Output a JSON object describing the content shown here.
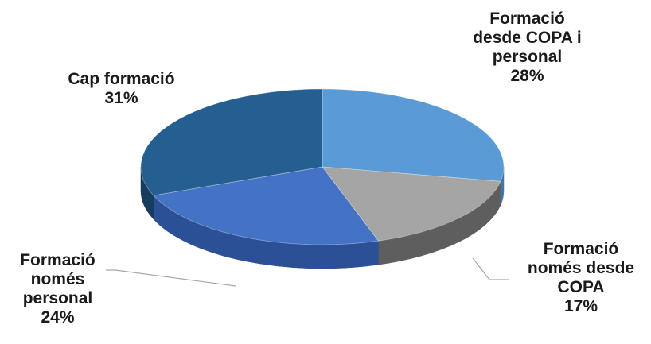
{
  "chart_data": {
    "type": "pie",
    "style": "3d",
    "title": "",
    "slices": [
      {
        "label_lines": [
          "Formació",
          "desde COPA i",
          "personal"
        ],
        "value": 28,
        "value_label": "28%",
        "color": "#5b9bd5",
        "side_color": "#3d76ad"
      },
      {
        "label_lines": [
          "Formació",
          "només desde",
          "COPA"
        ],
        "value": 17,
        "value_label": "17%",
        "color": "#a5a5a5",
        "side_color": "#5e5e5e"
      },
      {
        "label_lines": [
          "Formació",
          "només",
          "personal"
        ],
        "value": 24,
        "value_label": "24%",
        "color": "#4472c4",
        "side_color": "#2c5096"
      },
      {
        "label_lines": [
          "Cap formació"
        ],
        "value": 31,
        "value_label": "31%",
        "color": "#255e91",
        "side_color": "#173c5e"
      }
    ],
    "legend": "none",
    "data_labels": "outside-with-leaders"
  }
}
